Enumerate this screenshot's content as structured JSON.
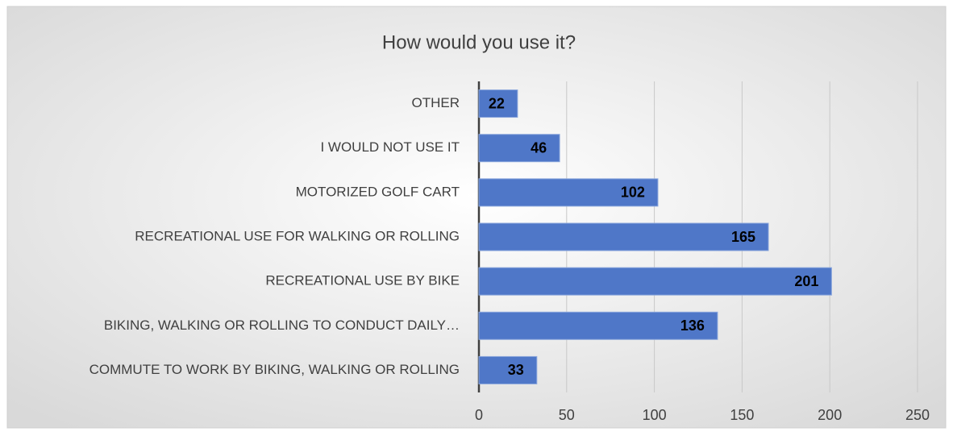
{
  "chart_data": {
    "type": "bar",
    "orientation": "horizontal",
    "title": "How would you use it?",
    "categories": [
      "OTHER",
      "I WOULD NOT USE IT",
      "MOTORIZED GOLF CART",
      "RECREATIONAL USE FOR WALKING OR ROLLING",
      "RECREATIONAL USE BY BIKE",
      "BIKING, WALKING OR ROLLING TO CONDUCT DAILY…",
      "COMMUTE TO WORK BY BIKING, WALKING OR ROLLING"
    ],
    "values": [
      22,
      46,
      102,
      165,
      201,
      136,
      33
    ],
    "color": "#4f77c8",
    "xlim": [
      0,
      250
    ],
    "xticks": [
      0,
      50,
      100,
      150,
      200,
      250
    ],
    "grid": true
  }
}
